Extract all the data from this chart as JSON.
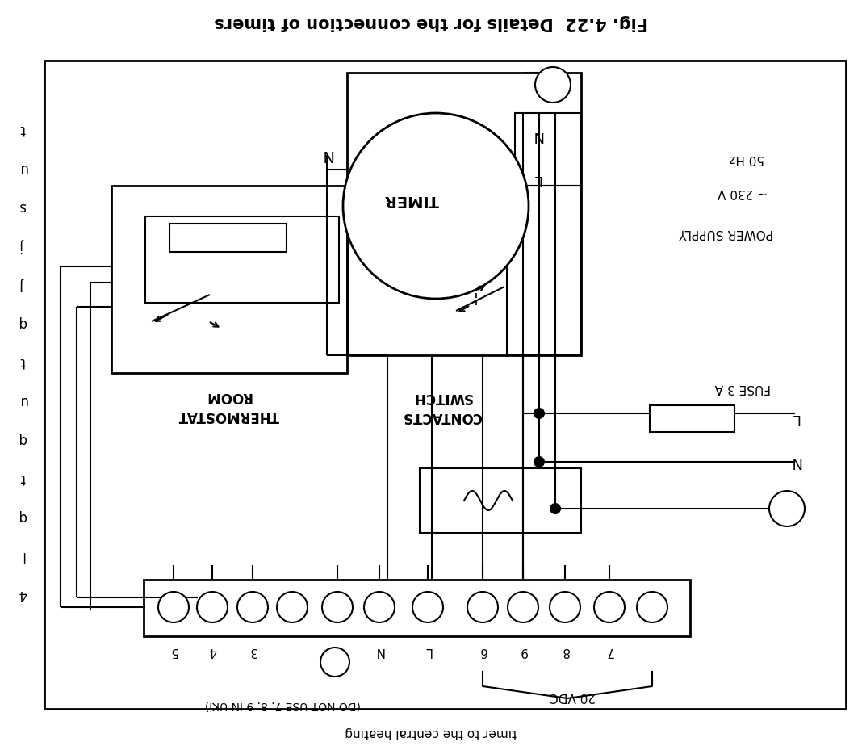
{
  "title": "Fig. 4.22  Details for the connection of timers",
  "bottom_text": "timer to the central heating",
  "bg_color": "#ffffff",
  "line_color": "#000000",
  "fig_width": 10.68,
  "fig_height": 9.24,
  "dpi": 100,
  "left_chars": [
    "t",
    "u",
    "s",
    "j",
    "J",
    "q",
    "t",
    "u",
    "q",
    "t",
    "q",
    "l",
    "4"
  ],
  "terminal_labels": [
    "5",
    "4",
    "3",
    "",
    "",
    "N",
    "L",
    "6",
    "9",
    "8",
    "7"
  ],
  "timer_text": "TIMER",
  "room_therm_text": [
    "ROOM",
    "THERMOSTAT"
  ],
  "switch_contacts_text": [
    "SWITCH",
    "CONTACTS"
  ],
  "power_supply_text": [
    "POWER SUPPLY",
    "~ 230 V",
    "50 Hz"
  ],
  "fuse_text": "FUSE 3 A",
  "note_text": "(DO NOT USE 7, 8, 9 IN UKi)",
  "vdc_text": "20 VDC"
}
